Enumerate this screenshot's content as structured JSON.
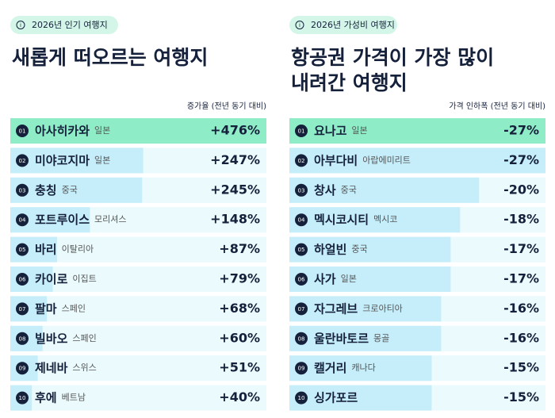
{
  "chart_data": [
    {
      "type": "bar",
      "badge": "2026년 인기 여행지",
      "title": [
        "새롭게 떠오르는 여행지"
      ],
      "value_header": "증가율 (전년 동기 대비)",
      "ranks": [
        "01",
        "02",
        "03",
        "04",
        "05",
        "06",
        "07",
        "08",
        "09",
        "10"
      ],
      "categories": [
        "아사히카와",
        "미야코지마",
        "충칭",
        "포트루이스",
        "바리",
        "카이로",
        "팔마",
        "빌바오",
        "제네바",
        "후에"
      ],
      "countries": [
        "일본",
        "일본",
        "중국",
        "모리셔스",
        "이탈리아",
        "이집트",
        "스페인",
        "스페인",
        "스위스",
        "베트남"
      ],
      "values": [
        476,
        247,
        245,
        148,
        87,
        79,
        68,
        60,
        51,
        40
      ],
      "value_labels": [
        "+476%",
        "+247%",
        "+245%",
        "+148%",
        "+87%",
        "+79%",
        "+68%",
        "+60%",
        "+51%",
        "+40%"
      ],
      "xlim": [
        0,
        476
      ],
      "color": "#c6eefa",
      "highlight_color": "#8eedc7"
    },
    {
      "type": "bar",
      "badge": "2026년 가성비 여행지",
      "title": [
        "항공권 가격이 가장 많이",
        "내려간 여행지"
      ],
      "value_header": "가격 인하폭 (전년 동기 대비)",
      "ranks": [
        "01",
        "02",
        "03",
        "04",
        "05",
        "06",
        "07",
        "08",
        "09",
        "10"
      ],
      "categories": [
        "요나고",
        "아부다비",
        "창사",
        "멕시코시티",
        "하얼빈",
        "사가",
        "자그레브",
        "울란바토르",
        "캘거리",
        "싱가포르"
      ],
      "countries": [
        "일본",
        "아랍에미리트",
        "중국",
        "멕시코",
        "중국",
        "일본",
        "크로아티아",
        "몽골",
        "캐나다",
        null
      ],
      "values": [
        -27,
        -27,
        -20,
        -18,
        -17,
        -17,
        -16,
        -16,
        -15,
        -15
      ],
      "value_labels": [
        "-27%",
        "-27%",
        "-20%",
        "-18%",
        "-17%",
        "-17%",
        "-16%",
        "-16%",
        "-15%",
        "-15%"
      ],
      "xlim": [
        0,
        -27
      ],
      "color": "#c6eefa",
      "highlight_color": "#8eedc7"
    }
  ]
}
